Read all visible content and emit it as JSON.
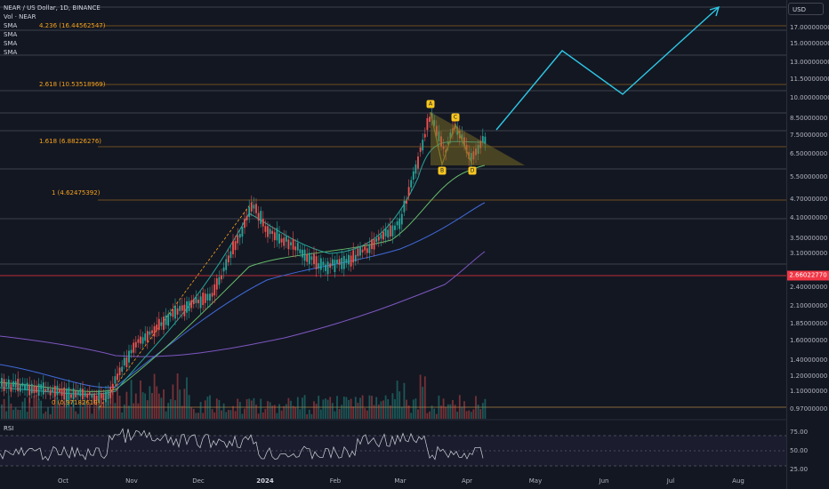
{
  "header": {
    "symbol_title": "NEAR / US Dollar, 1D, BINANCE",
    "indicators": [
      "Vol · NEAR",
      "SMA",
      "SMA",
      "SMA",
      "SMA"
    ]
  },
  "rsi_panel": {
    "label": "RSI",
    "ticks": [
      "75.00",
      "50.00",
      "25.00"
    ]
  },
  "price_axis": {
    "currency": "USD",
    "ticks": [
      "17.00000000",
      "15.00000000",
      "13.00000000",
      "11.50000000",
      "10.00000000",
      "8.50000000",
      "7.50000000",
      "6.50000000",
      "5.50000000",
      "4.70000000",
      "4.10000000",
      "3.50000000",
      "3.10000000",
      "2.40000000",
      "2.10000000",
      "1.85000000",
      "1.60000000",
      "1.40000000",
      "1.20000000",
      "1.10000000",
      "0.97000000"
    ],
    "current_price": "2.66022770",
    "current_price_color": "#f23645"
  },
  "time_axis": {
    "ticks": [
      "Oct",
      "Nov",
      "Dec",
      "2024",
      "Feb",
      "Mar",
      "Apr",
      "May",
      "Jun",
      "Jul",
      "Aug"
    ]
  },
  "fibonacci": {
    "color": "#f7a21b",
    "levels": [
      "4.236 (16.44562547)",
      "2.618 (10.53518969)",
      "1.618 (6.88226276)",
      "1 (4.62475392)",
      "0 (0.97182619)"
    ]
  },
  "pattern_points": [
    "A",
    "B",
    "C",
    "D"
  ],
  "colors": {
    "background": "#131722",
    "up_candle": "#26a69a",
    "down_candle": "#ef5350",
    "projection": "#2ec8e6",
    "triangle_fill": "#8a7a25"
  }
}
